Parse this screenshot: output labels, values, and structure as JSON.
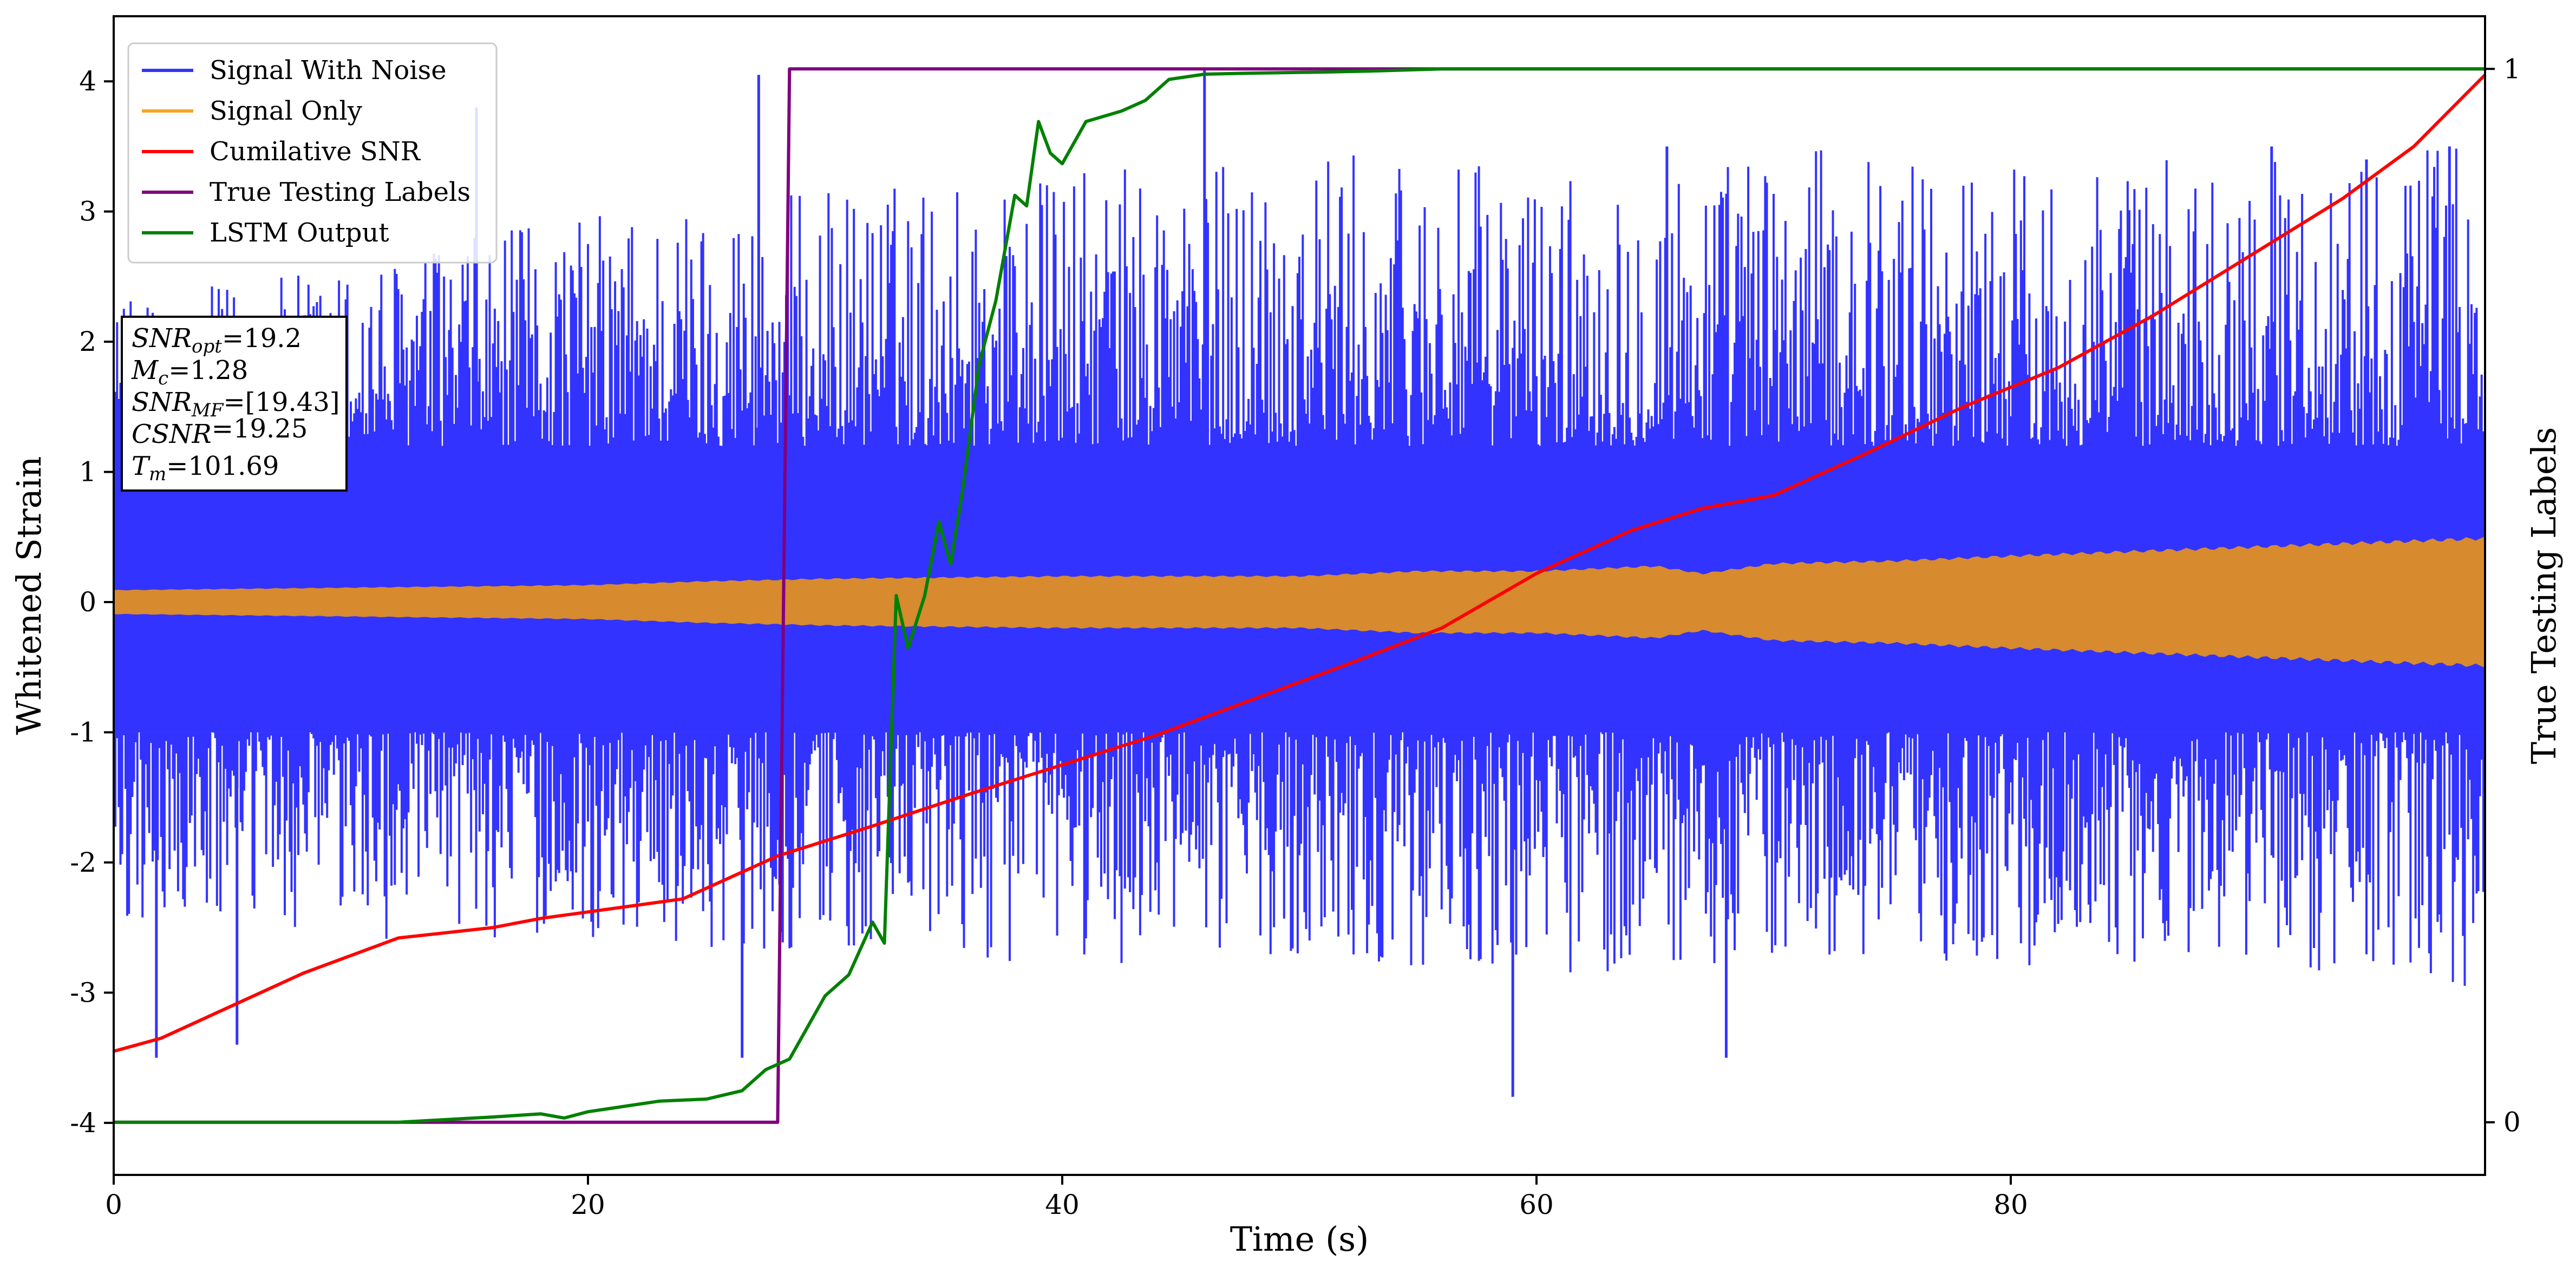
{
  "chart_data": {
    "type": "line",
    "xlabel": "Time (s)",
    "ylabel": "Whitened Strain",
    "y2label": "True Testing Labels",
    "xlim": [
      0,
      100
    ],
    "ylim": [
      -4.4,
      4.5
    ],
    "y2lim": [
      -0.05,
      1.05
    ],
    "x_ticks": [
      0,
      20,
      40,
      60,
      80
    ],
    "y_ticks": [
      -4,
      -3,
      -2,
      -1,
      0,
      1,
      2,
      3,
      4
    ],
    "y2_ticks": [
      0,
      1
    ],
    "grid": false,
    "legend_position": "top-left",
    "legend": [
      {
        "label": "Signal With Noise",
        "color": "#3333ff"
      },
      {
        "label": "Signal Only",
        "color": "#f5a623"
      },
      {
        "label": "Cumilative SNR",
        "color": "#ff0000"
      },
      {
        "label": "True Testing Labels",
        "color": "#800080"
      },
      {
        "label": "LSTM Output",
        "color": "#008000"
      }
    ],
    "info_box": [
      {
        "symbol": "SNR",
        "sub": "opt",
        "value": "=19.2"
      },
      {
        "symbol": "M",
        "sub": "c",
        "value": "=1.28"
      },
      {
        "symbol": "SNR",
        "sub": "MF",
        "value": "=[19.43]"
      },
      {
        "symbol": "CSNR",
        "sub": "",
        "value": "=19.25"
      },
      {
        "symbol": "T",
        "sub": "m",
        "value": "=101.69"
      }
    ],
    "series": [
      {
        "name": "Signal With Noise",
        "color": "#3333ff",
        "axis": "left",
        "style": "noise",
        "envelope_x": [
          0,
          10,
          20,
          30,
          40,
          50,
          60,
          70,
          80,
          90,
          100
        ],
        "envelope_upper": [
          2.3,
          2.6,
          3.0,
          3.2,
          3.3,
          3.5,
          3.3,
          3.5,
          3.4,
          3.4,
          3.6
        ],
        "envelope_lower": [
          -2.5,
          -2.6,
          -2.6,
          -2.7,
          -2.8,
          -2.7,
          -2.9,
          -2.8,
          -2.8,
          -2.8,
          -3.0
        ],
        "core_band": [
          -1.0,
          1.2
        ],
        "peaks": [
          {
            "x": 1.8,
            "y": -3.5
          },
          {
            "x": 5.2,
            "y": -3.4
          },
          {
            "x": 15.3,
            "y": 3.8
          },
          {
            "x": 26.5,
            "y": -3.5
          },
          {
            "x": 27.2,
            "y": 4.05
          },
          {
            "x": 46.0,
            "y": 4.1
          },
          {
            "x": 59.0,
            "y": -3.8
          },
          {
            "x": 65.5,
            "y": 3.5
          },
          {
            "x": 68.0,
            "y": -3.5
          },
          {
            "x": 91.0,
            "y": 3.5
          },
          {
            "x": 95.0,
            "y": 3.4
          },
          {
            "x": 98.5,
            "y": 3.5
          }
        ]
      },
      {
        "name": "Signal Only",
        "color": "#d78a2e",
        "axis": "left",
        "style": "band",
        "x": [
          0,
          10,
          20,
          25,
          30,
          40,
          50,
          55,
          60,
          65,
          67,
          70,
          75,
          80,
          90,
          100
        ],
        "amplitude": [
          0.09,
          0.11,
          0.13,
          0.16,
          0.18,
          0.2,
          0.2,
          0.24,
          0.24,
          0.28,
          0.22,
          0.3,
          0.32,
          0.36,
          0.43,
          0.5
        ]
      },
      {
        "name": "Cumilative SNR",
        "color": "#ff0000",
        "axis": "left",
        "x": [
          0,
          2,
          5,
          8,
          12,
          16,
          18,
          20,
          24,
          28,
          32,
          36,
          40,
          44,
          48,
          52,
          56,
          60,
          64,
          67,
          70,
          74,
          78,
          82,
          86,
          90,
          94,
          97,
          100
        ],
        "y": [
          -3.45,
          -3.35,
          -3.1,
          -2.85,
          -2.58,
          -2.5,
          -2.43,
          -2.38,
          -2.28,
          -1.95,
          -1.72,
          -1.48,
          -1.25,
          -1.02,
          -0.75,
          -0.48,
          -0.2,
          0.22,
          0.55,
          0.72,
          0.82,
          1.15,
          1.5,
          1.8,
          2.2,
          2.65,
          3.1,
          3.5,
          4.05
        ]
      },
      {
        "name": "True Testing Labels",
        "color": "#800080",
        "axis": "right",
        "x": [
          0,
          28.0,
          28.5,
          100
        ],
        "y": [
          0,
          0,
          1,
          1
        ]
      },
      {
        "name": "LSTM Output",
        "color": "#008000",
        "axis": "right",
        "x": [
          0,
          12,
          16,
          18,
          19,
          20,
          23,
          25,
          26.5,
          27.5,
          28.5,
          30,
          31,
          32,
          32.5,
          33,
          33.5,
          34.2,
          34.8,
          35.3,
          35.8,
          36.5,
          37.2,
          38,
          38.5,
          39,
          39.5,
          40,
          41,
          42.5,
          43.5,
          44.5,
          46,
          48,
          51,
          53,
          56,
          60,
          70,
          80,
          100
        ],
        "y": [
          0,
          0,
          0.005,
          0.008,
          0.004,
          0.01,
          0.02,
          0.022,
          0.03,
          0.05,
          0.06,
          0.12,
          0.14,
          0.19,
          0.17,
          0.5,
          0.45,
          0.5,
          0.57,
          0.53,
          0.6,
          0.72,
          0.78,
          0.88,
          0.87,
          0.95,
          0.92,
          0.91,
          0.95,
          0.96,
          0.97,
          0.99,
          0.995,
          0.996,
          0.997,
          0.998,
          1,
          1,
          1,
          1,
          1
        ]
      }
    ]
  }
}
